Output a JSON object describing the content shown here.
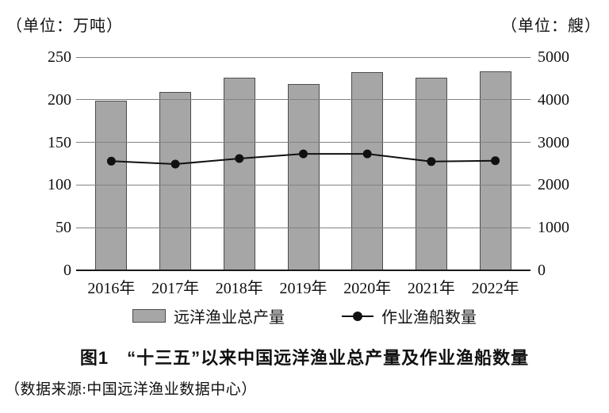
{
  "header": {
    "unit_left": "（单位：万吨）",
    "unit_right": "（单位：艘）"
  },
  "chart_data": {
    "type": "bar",
    "categories": [
      "2016年",
      "2017年",
      "2018年",
      "2019年",
      "2020年",
      "2021年",
      "2022年"
    ],
    "series": [
      {
        "name": "远洋渔业总产量",
        "type": "bar",
        "axis": "left",
        "unit": "万吨",
        "values": [
          199,
          209,
          226,
          218,
          232,
          226,
          233
        ]
      },
      {
        "name": "作业渔船数量",
        "type": "line",
        "axis": "right",
        "unit": "艘",
        "values": [
          2560,
          2490,
          2620,
          2730,
          2730,
          2550,
          2570
        ]
      }
    ],
    "left_axis": {
      "label": "（单位：万吨）",
      "ticks": [
        0,
        50,
        100,
        150,
        200,
        250
      ],
      "range": [
        0,
        250
      ]
    },
    "right_axis": {
      "label": "（单位：艘）",
      "ticks": [
        0,
        1000,
        2000,
        3000,
        4000,
        5000
      ],
      "range": [
        0,
        5000
      ]
    },
    "grid": true,
    "legend_position": "bottom",
    "title": "图1　“十三五”以来中国远洋渔业总产量及作业渔船数量"
  },
  "legend": {
    "bar_label": "远洋渔业总产量",
    "line_label": "作业渔船数量"
  },
  "caption": {
    "title": "图1　“十三五”以来中国远洋渔业总产量及作业渔船数量"
  },
  "source": "（数据来源:中国远洋渔业数据中心）",
  "colors": {
    "bar_fill": "#a6a6a6",
    "bar_border": "#4d4d4d",
    "grid": "#828282",
    "axis": "#1a1a1a",
    "line": "#111111",
    "text": "#111111",
    "background": "#ffffff"
  }
}
